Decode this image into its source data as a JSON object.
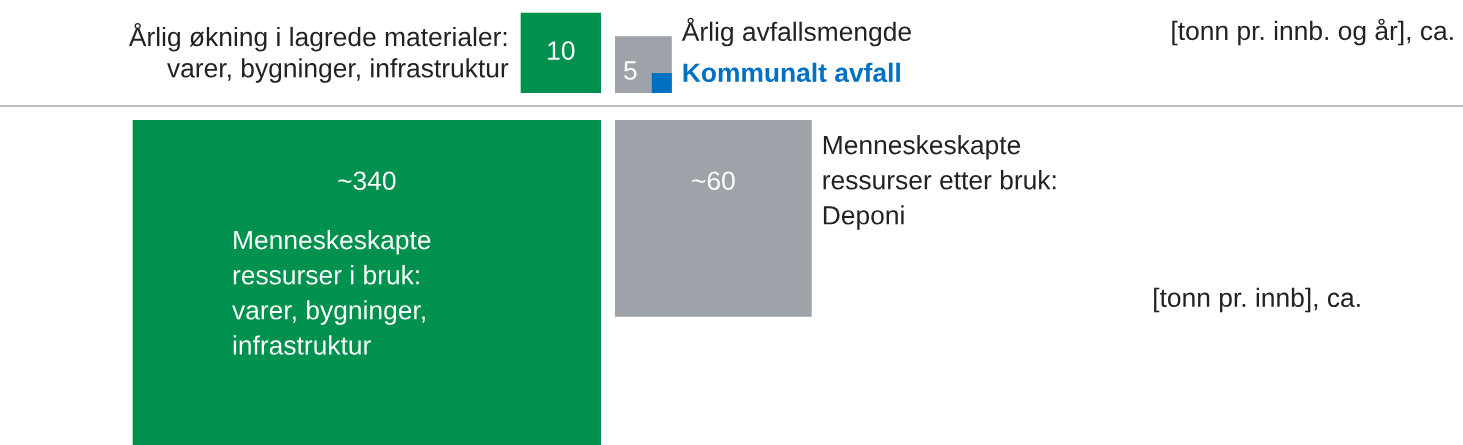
{
  "chart_data": {
    "type": "other",
    "categories": [
      "Årlig økning i lagrede materialer:\nvarer, bygninger, infrastruktur",
      "Årlig avfallsmengde",
      "Menneskeskapte\nressurser i bruk:\nvarer, bygninger,\ninfrastruktur",
      "Menneskeskapte\nressurser etter bruk:\nDeponi"
    ],
    "values": [
      10,
      5,
      340,
      60
    ],
    "value_labels": [
      "10",
      "5",
      "~340",
      "~60"
    ],
    "colors": [
      "#00914f",
      "#9ea3a9",
      "#00914f",
      "#9ea3a9"
    ],
    "annotations": [
      "[tonn pr. innb. og år], ca.",
      "Kommunalt avfall",
      "[tonn pr. innb], ca."
    ]
  }
}
